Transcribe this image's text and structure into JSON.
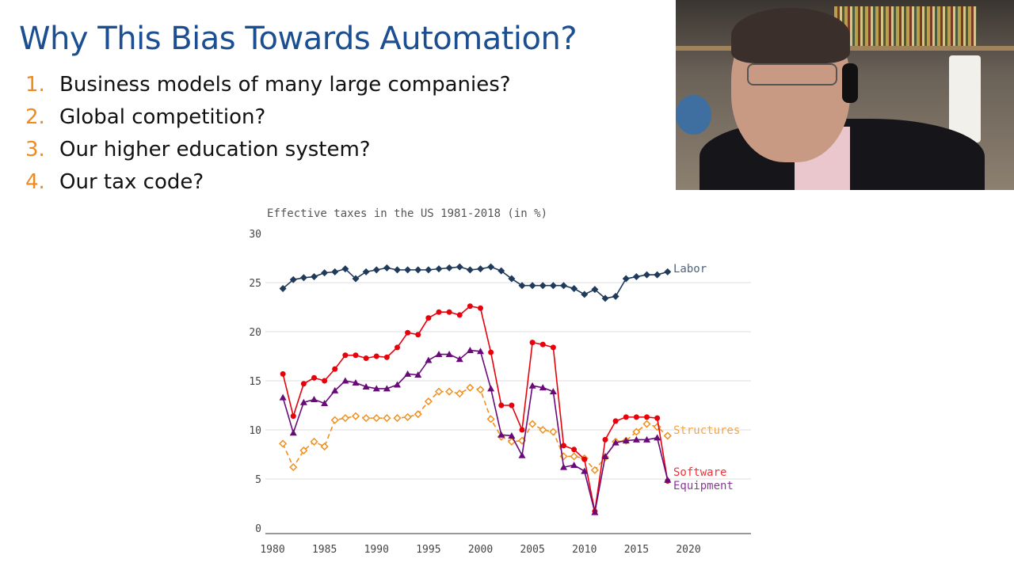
{
  "slide": {
    "title": "Why This Bias Towards Automation?",
    "items": [
      {
        "num": "1.",
        "text": "Business models of many large companies?"
      },
      {
        "num": "2.",
        "text": "Global competition?"
      },
      {
        "num": "3.",
        "text": "Our higher education system?"
      },
      {
        "num": "4.",
        "text": "Our tax code?"
      }
    ]
  },
  "colors": {
    "title": "#1c4f91",
    "number": "#ef8a1c"
  },
  "chart_data": {
    "type": "line",
    "title": "Effective taxes in the US 1981-2018 (in %)",
    "xlabel": "",
    "ylabel": "",
    "xlim": [
      1980,
      2025
    ],
    "ylim": [
      0,
      30
    ],
    "x_ticks": [
      1980,
      1985,
      1990,
      1995,
      2000,
      2005,
      2010,
      2015,
      2020
    ],
    "y_ticks": [
      0,
      5,
      10,
      15,
      20,
      25,
      30
    ],
    "grid": true,
    "legend": "inline labels at right end of each series",
    "x": [
      1981,
      1982,
      1983,
      1984,
      1985,
      1986,
      1987,
      1988,
      1989,
      1990,
      1991,
      1992,
      1993,
      1994,
      1995,
      1996,
      1997,
      1998,
      1999,
      2000,
      2001,
      2002,
      2003,
      2004,
      2005,
      2006,
      2007,
      2008,
      2009,
      2010,
      2011,
      2012,
      2013,
      2014,
      2015,
      2016,
      2017,
      2018
    ],
    "series": [
      {
        "name": "Labor",
        "color": "#1f3a5a",
        "marker": "diamond",
        "dashed": false,
        "values": [
          24.4,
          25.3,
          25.5,
          25.6,
          26.0,
          26.1,
          26.4,
          25.4,
          26.1,
          26.3,
          26.5,
          26.3,
          26.3,
          26.3,
          26.3,
          26.4,
          26.5,
          26.6,
          26.3,
          26.4,
          26.6,
          26.2,
          25.4,
          24.7,
          24.7,
          24.7,
          24.7,
          24.7,
          24.4,
          23.8,
          24.3,
          23.4,
          23.6,
          25.4,
          25.6,
          25.8,
          25.8,
          26.1
        ]
      },
      {
        "name": "Structures",
        "color": "#f0901e",
        "marker": "open-diamond",
        "dashed": true,
        "values": [
          8.6,
          6.2,
          7.9,
          8.8,
          8.3,
          11.0,
          11.2,
          11.4,
          11.2,
          11.2,
          11.2,
          11.2,
          11.3,
          11.6,
          12.9,
          13.9,
          13.9,
          13.7,
          14.3,
          14.1,
          11.1,
          9.3,
          8.8,
          8.9,
          10.6,
          10.0,
          9.8,
          7.3,
          7.3,
          7.1,
          5.9,
          7.2,
          8.8,
          8.9,
          9.8,
          10.6,
          10.3,
          9.4
        ]
      },
      {
        "name": "Software",
        "color": "#e8000b",
        "marker": "circle",
        "dashed": false,
        "values": [
          15.7,
          11.4,
          14.7,
          15.3,
          15.0,
          16.2,
          17.6,
          17.6,
          17.3,
          17.5,
          17.4,
          18.4,
          19.9,
          19.7,
          21.4,
          22.0,
          22.0,
          21.7,
          22.6,
          22.4,
          17.9,
          12.5,
          12.5,
          10.0,
          18.9,
          18.7,
          18.4,
          8.4,
          8.0,
          7.0,
          1.7,
          9.0,
          10.9,
          11.3,
          11.3,
          11.3,
          11.2,
          4.8
        ]
      },
      {
        "name": "Equipment",
        "color": "#6a0a7a",
        "marker": "triangle",
        "dashed": false,
        "values": [
          13.3,
          9.7,
          12.8,
          13.1,
          12.7,
          14.0,
          15.0,
          14.8,
          14.4,
          14.2,
          14.2,
          14.6,
          15.7,
          15.6,
          17.1,
          17.7,
          17.7,
          17.2,
          18.1,
          18.0,
          14.2,
          9.5,
          9.4,
          7.4,
          14.5,
          14.3,
          13.9,
          6.2,
          6.4,
          5.8,
          1.6,
          7.3,
          8.7,
          8.9,
          9.0,
          9.0,
          9.2,
          4.9
        ]
      }
    ]
  }
}
